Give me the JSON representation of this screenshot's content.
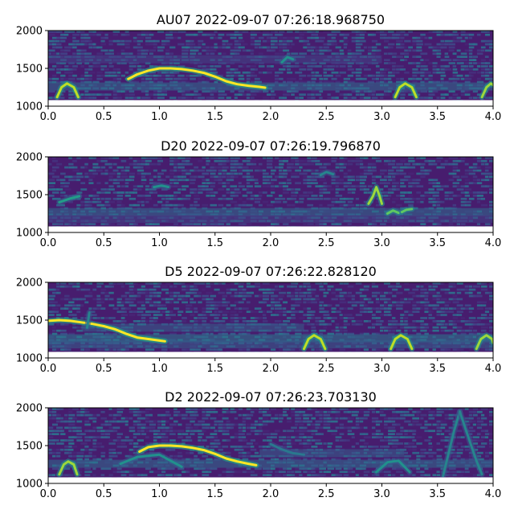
{
  "chart_data": [
    {
      "type": "heatmap",
      "title": "AU07 2022-09-07 07:26:18.968750",
      "xlim": [
        0.0,
        4.0
      ],
      "ylim": [
        1000,
        2000
      ],
      "xticks": [
        "0.0",
        "0.5",
        "1.0",
        "1.5",
        "2.0",
        "2.5",
        "3.0",
        "3.5",
        "4.0"
      ],
      "yticks": [
        "1000",
        "1500",
        "2000"
      ],
      "colormap": "viridis",
      "lower_cut": 1080,
      "tracks": [
        {
          "points": [
            [
              0.72,
              1360
            ],
            [
              0.8,
              1420
            ],
            [
              0.9,
              1470
            ],
            [
              1.0,
              1500
            ],
            [
              1.1,
              1500
            ],
            [
              1.2,
              1490
            ],
            [
              1.3,
              1470
            ],
            [
              1.4,
              1440
            ],
            [
              1.5,
              1390
            ],
            [
              1.6,
              1330
            ],
            [
              1.7,
              1290
            ],
            [
              1.8,
              1270
            ],
            [
              1.9,
              1255
            ],
            [
              1.95,
              1245
            ]
          ],
          "intensity": 1.0
        },
        {
          "points": [
            [
              0.08,
              1120
            ],
            [
              0.12,
              1250
            ],
            [
              0.17,
              1300
            ],
            [
              0.23,
              1250
            ],
            [
              0.27,
              1120
            ]
          ],
          "intensity": 0.9
        },
        {
          "points": [
            [
              3.12,
              1120
            ],
            [
              3.16,
              1250
            ],
            [
              3.21,
              1300
            ],
            [
              3.27,
              1250
            ],
            [
              3.31,
              1120
            ]
          ],
          "intensity": 0.9
        },
        {
          "points": [
            [
              3.9,
              1120
            ],
            [
              3.94,
              1250
            ],
            [
              3.98,
              1300
            ],
            [
              4.0,
              1280
            ]
          ],
          "intensity": 0.85
        },
        {
          "points": [
            [
              2.1,
              1580
            ],
            [
              2.15,
              1650
            ],
            [
              2.2,
              1620
            ]
          ],
          "intensity": 0.5
        }
      ],
      "bands": [
        {
          "y": 1260,
          "from": 0.0,
          "to": 4.0,
          "intensity": 0.35
        },
        {
          "y": 1620,
          "from": 0.0,
          "to": 3.0,
          "intensity": 0.2
        }
      ]
    },
    {
      "type": "heatmap",
      "title": "D20 2022-09-07 07:26:19.796870",
      "xlim": [
        0.0,
        4.0
      ],
      "ylim": [
        1000,
        2000
      ],
      "xticks": [
        "0.0",
        "0.5",
        "1.0",
        "1.5",
        "2.0",
        "2.5",
        "3.0",
        "3.5",
        "4.0"
      ],
      "yticks": [
        "1000",
        "1500",
        "2000"
      ],
      "colormap": "viridis",
      "lower_cut": 1080,
      "tracks": [
        {
          "points": [
            [
              2.88,
              1380
            ],
            [
              2.92,
              1480
            ],
            [
              2.95,
              1600
            ],
            [
              2.98,
              1480
            ],
            [
              3.0,
              1380
            ]
          ],
          "intensity": 0.85
        },
        {
          "points": [
            [
              3.05,
              1250
            ],
            [
              3.1,
              1290
            ],
            [
              3.15,
              1260
            ]
          ],
          "intensity": 0.75
        },
        {
          "points": [
            [
              3.18,
              1270
            ],
            [
              3.22,
              1300
            ],
            [
              3.27,
              1310
            ]
          ],
          "intensity": 0.75
        },
        {
          "points": [
            [
              0.1,
              1400
            ],
            [
              0.2,
              1450
            ],
            [
              0.28,
              1480
            ]
          ],
          "intensity": 0.55
        },
        {
          "points": [
            [
              0.95,
              1600
            ],
            [
              1.02,
              1620
            ],
            [
              1.08,
              1600
            ]
          ],
          "intensity": 0.5
        },
        {
          "points": [
            [
              2.45,
              1760
            ],
            [
              2.5,
              1800
            ],
            [
              2.56,
              1770
            ]
          ],
          "intensity": 0.45
        }
      ],
      "bands": [
        {
          "y": 1270,
          "from": 0.0,
          "to": 4.0,
          "intensity": 0.35
        },
        {
          "y": 1180,
          "from": 0.0,
          "to": 4.0,
          "intensity": 0.2
        }
      ]
    },
    {
      "type": "heatmap",
      "title": "D5 2022-09-07 07:26:22.828120",
      "xlim": [
        0.0,
        4.0
      ],
      "ylim": [
        1000,
        2000
      ],
      "xticks": [
        "0.0",
        "0.5",
        "1.0",
        "1.5",
        "2.0",
        "2.5",
        "3.0",
        "3.5",
        "4.0"
      ],
      "yticks": [
        "1000",
        "1500",
        "2000"
      ],
      "colormap": "viridis",
      "lower_cut": 1080,
      "tracks": [
        {
          "points": [
            [
              0.0,
              1490
            ],
            [
              0.1,
              1500
            ],
            [
              0.2,
              1490
            ],
            [
              0.3,
              1470
            ],
            [
              0.4,
              1450
            ],
            [
              0.5,
              1420
            ],
            [
              0.6,
              1380
            ],
            [
              0.7,
              1320
            ],
            [
              0.8,
              1270
            ],
            [
              0.9,
              1250
            ],
            [
              1.0,
              1230
            ],
            [
              1.05,
              1220
            ]
          ],
          "intensity": 1.0
        },
        {
          "points": [
            [
              2.3,
              1120
            ],
            [
              2.34,
              1250
            ],
            [
              2.39,
              1300
            ],
            [
              2.45,
              1250
            ],
            [
              2.49,
              1120
            ]
          ],
          "intensity": 0.9
        },
        {
          "points": [
            [
              3.08,
              1120
            ],
            [
              3.12,
              1250
            ],
            [
              3.17,
              1300
            ],
            [
              3.23,
              1250
            ],
            [
              3.27,
              1120
            ]
          ],
          "intensity": 0.9
        },
        {
          "points": [
            [
              3.85,
              1120
            ],
            [
              3.89,
              1250
            ],
            [
              3.94,
              1300
            ],
            [
              3.99,
              1250
            ],
            [
              4.0,
              1200
            ]
          ],
          "intensity": 0.85
        },
        {
          "points": [
            [
              0.35,
              1400
            ],
            [
              0.36,
              1500
            ],
            [
              0.37,
              1600
            ]
          ],
          "intensity": 0.45
        }
      ],
      "bands": [
        {
          "y": 1260,
          "from": 0.0,
          "to": 4.0,
          "intensity": 0.4
        },
        {
          "y": 1400,
          "from": 0.3,
          "to": 2.3,
          "intensity": 0.3
        },
        {
          "y": 1180,
          "from": 0.0,
          "to": 4.0,
          "intensity": 0.3
        }
      ]
    },
    {
      "type": "heatmap",
      "title": "D2 2022-09-07 07:26:23.703130",
      "xlim": [
        0.0,
        4.0
      ],
      "ylim": [
        1000,
        2000
      ],
      "xticks": [
        "0.0",
        "0.5",
        "1.0",
        "1.5",
        "2.0",
        "2.5",
        "3.0",
        "3.5",
        "4.0"
      ],
      "yticks": [
        "1000",
        "1500",
        "2000"
      ],
      "colormap": "viridis",
      "lower_cut": 1080,
      "tracks": [
        {
          "points": [
            [
              0.82,
              1420
            ],
            [
              0.9,
              1480
            ],
            [
              1.0,
              1500
            ],
            [
              1.1,
              1500
            ],
            [
              1.2,
              1490
            ],
            [
              1.3,
              1470
            ],
            [
              1.4,
              1440
            ],
            [
              1.5,
              1390
            ],
            [
              1.6,
              1330
            ],
            [
              1.7,
              1290
            ],
            [
              1.8,
              1260
            ],
            [
              1.87,
              1240
            ]
          ],
          "intensity": 1.0
        },
        {
          "points": [
            [
              0.1,
              1120
            ],
            [
              0.14,
              1250
            ],
            [
              0.18,
              1290
            ],
            [
              0.23,
              1250
            ],
            [
              0.26,
              1120
            ]
          ],
          "intensity": 0.85
        },
        {
          "points": [
            [
              0.65,
              1260
            ],
            [
              0.8,
              1350
            ],
            [
              1.0,
              1380
            ],
            [
              1.1,
              1300
            ],
            [
              1.2,
              1220
            ]
          ],
          "intensity": 0.5
        },
        {
          "points": [
            [
              3.55,
              1100
            ],
            [
              3.6,
              1400
            ],
            [
              3.65,
              1700
            ],
            [
              3.7,
              1950
            ]
          ],
          "intensity": 0.45
        },
        {
          "points": [
            [
              3.7,
              1950
            ],
            [
              3.78,
              1600
            ],
            [
              3.85,
              1300
            ],
            [
              3.9,
              1120
            ]
          ],
          "intensity": 0.45
        },
        {
          "points": [
            [
              2.95,
              1150
            ],
            [
              3.05,
              1280
            ],
            [
              3.15,
              1300
            ],
            [
              3.25,
              1150
            ]
          ],
          "intensity": 0.5
        },
        {
          "points": [
            [
              2.0,
              1520
            ],
            [
              2.1,
              1450
            ],
            [
              2.2,
              1400
            ],
            [
              2.3,
              1380
            ]
          ],
          "intensity": 0.4
        }
      ],
      "bands": [
        {
          "y": 1260,
          "from": 0.0,
          "to": 4.0,
          "intensity": 0.35
        },
        {
          "y": 1400,
          "from": 1.9,
          "to": 3.2,
          "intensity": 0.3
        }
      ]
    }
  ]
}
